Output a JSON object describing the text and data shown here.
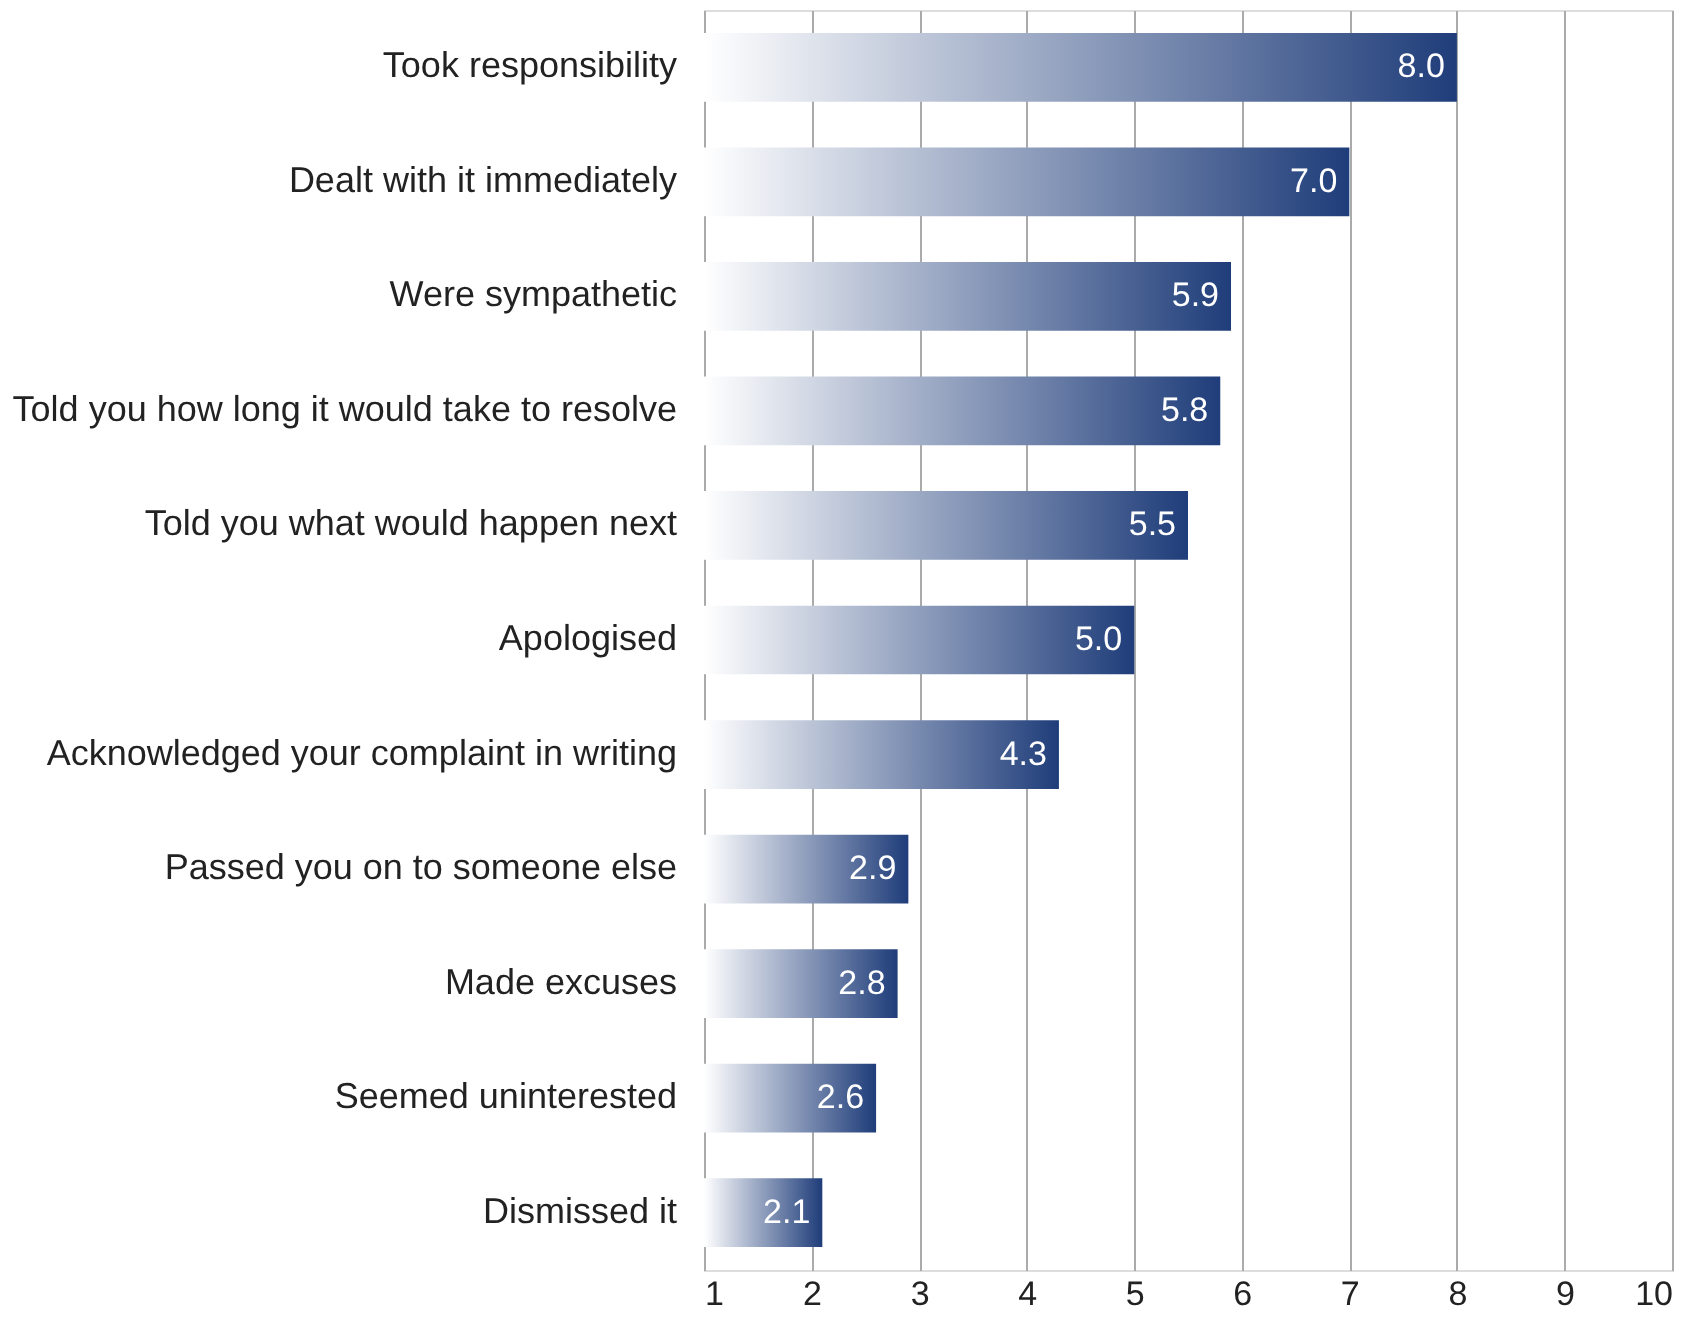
{
  "chart_data": {
    "type": "bar",
    "orientation": "horizontal",
    "categories": [
      "Took responsibility",
      "Dealt with it immediately",
      "Were sympathetic",
      "Told you how long it would take to resolve",
      "Told you what would happen next",
      "Apologised",
      "Acknowledged your complaint in writing",
      "Passed you on to someone else",
      "Made excuses",
      "Seemed uninterested",
      "Dismissed it"
    ],
    "values": [
      8.0,
      7.0,
      5.9,
      5.8,
      5.5,
      5.0,
      4.3,
      2.9,
      2.8,
      2.6,
      2.1
    ],
    "color": "#1f3d7a",
    "xlim": [
      1,
      10
    ],
    "xticks": [
      1,
      2,
      3,
      4,
      5,
      6,
      7,
      8,
      9,
      10
    ],
    "value_labels": [
      "8.0",
      "7.0",
      "5.9",
      "5.8",
      "5.5",
      "5.0",
      "4.3",
      "2.9",
      "2.8",
      "2.6",
      "2.1"
    ],
    "grid": "x"
  }
}
